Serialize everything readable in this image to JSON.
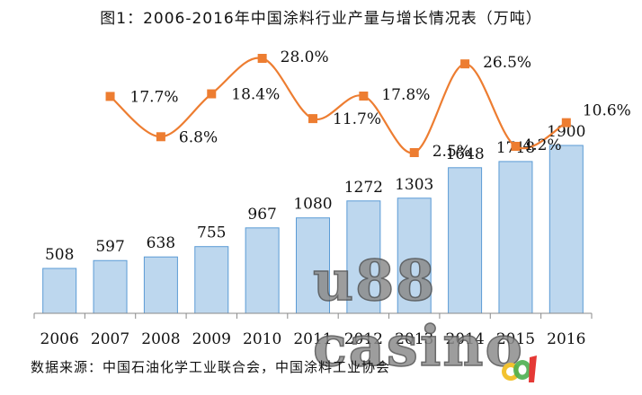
{
  "title": "图1：2006-2016年中国涂料行业产量与增长情况表（万吨）",
  "source": "数据来源：中国石油化学工业联合会，中国涂料工业协会",
  "watermark": "u88 casino",
  "chart_data": {
    "type": "bar",
    "categories": [
      "2006",
      "2007",
      "2008",
      "2009",
      "2010",
      "2011",
      "2012",
      "2013",
      "2014",
      "2015",
      "2016"
    ],
    "series": [
      {
        "type": "bar",
        "values": [
          508,
          597,
          638,
          755,
          967,
          1080,
          1272,
          1303,
          1648,
          1718,
          1900
        ],
        "labels": [
          "508",
          "597",
          "638",
          "755",
          "967",
          "1080",
          "1272",
          "1303",
          "1648",
          "1718",
          "1900"
        ],
        "color": "#bdd7ee",
        "stroke": "#5b9bd5"
      },
      {
        "type": "line",
        "x": [
          "2007",
          "2008",
          "2009",
          "2010",
          "2011",
          "2012",
          "2013",
          "2014",
          "2015",
          "2016"
        ],
        "values": [
          17.7,
          6.8,
          18.4,
          28.0,
          11.7,
          17.8,
          2.5,
          26.5,
          4.2,
          10.6
        ],
        "labels": [
          "17.7%",
          "6.8%",
          "18.4%",
          "28.0%",
          "11.7%",
          "17.8%",
          "2.5%",
          "26.5%",
          "4.2%",
          "10.6%"
        ],
        "color": "#ed7d31"
      }
    ],
    "bar_axis": {
      "ylim": [
        0,
        3000
      ]
    },
    "line_axis": {
      "ylim": [
        -50,
        30
      ]
    },
    "grid": false,
    "legend": false
  }
}
